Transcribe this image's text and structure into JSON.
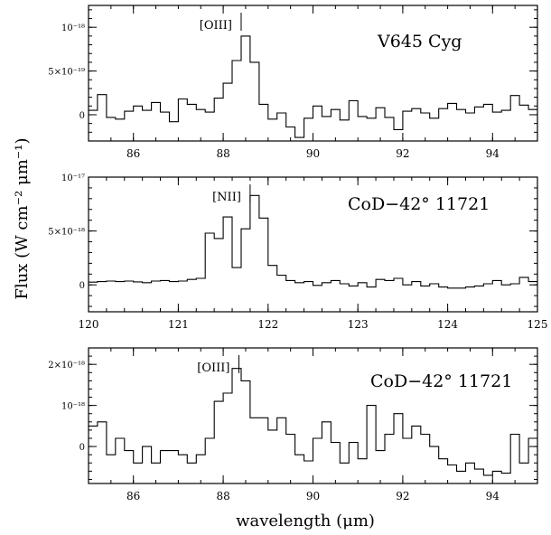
{
  "figure": {
    "ylabel": "Flux (W cm⁻² μm⁻¹)",
    "xlabel": "wavelength (μm)"
  },
  "chart_data": [
    {
      "type": "line",
      "style": "step",
      "panel_label": "V645 Cyg",
      "line_label": "[OIII]",
      "line_marker_x": 88.4,
      "xlim": [
        85,
        95
      ],
      "ylim": [
        -3e-19,
        1.25e-18
      ],
      "xticks": [
        86,
        88,
        90,
        92,
        94
      ],
      "yticks": [
        {
          "value": 0,
          "label": "0"
        },
        {
          "value": 5e-19,
          "label": "5×10⁻¹⁹"
        },
        {
          "value": 1e-18,
          "label": "10⁻¹⁸"
        }
      ],
      "x": [
        85.0,
        85.2,
        85.4,
        85.6,
        85.8,
        86.0,
        86.2,
        86.4,
        86.6,
        86.8,
        87.0,
        87.2,
        87.4,
        87.6,
        87.8,
        88.0,
        88.2,
        88.4,
        88.6,
        88.8,
        89.0,
        89.2,
        89.4,
        89.6,
        89.8,
        90.0,
        90.2,
        90.4,
        90.6,
        90.8,
        91.0,
        91.2,
        91.4,
        91.6,
        91.8,
        92.0,
        92.2,
        92.4,
        92.6,
        92.8,
        93.0,
        93.2,
        93.4,
        93.6,
        93.8,
        94.0,
        94.2,
        94.4,
        94.6,
        94.8,
        95.0
      ],
      "y": [
        5e-20,
        2.3e-19,
        -3e-20,
        -5e-20,
        4e-20,
        1e-19,
        5e-20,
        1.4e-19,
        3e-20,
        -8e-20,
        1.8e-19,
        1.2e-19,
        6e-20,
        3e-20,
        1.9e-19,
        3.6e-19,
        6.2e-19,
        9e-19,
        6e-19,
        1.2e-19,
        -5e-20,
        2e-20,
        -1.4e-19,
        -2.6e-19,
        -4e-20,
        1e-19,
        -2e-20,
        6e-20,
        -6e-20,
        1.6e-19,
        -2e-20,
        -4e-20,
        8e-20,
        -3e-20,
        -1.7e-19,
        4e-20,
        7e-20,
        2e-20,
        -4e-20,
        7e-20,
        1.3e-19,
        6e-20,
        2e-20,
        9e-20,
        1.2e-19,
        3e-20,
        5e-20,
        2.2e-19,
        1.1e-19,
        6e-20,
        6e-20
      ]
    },
    {
      "type": "line",
      "style": "step",
      "panel_label": "CoD−42° 11721",
      "line_label": "[NII]",
      "line_marker_x": 121.8,
      "xlim": [
        120,
        125
      ],
      "ylim": [
        -2.5e-18,
        1e-17
      ],
      "xticks": [
        120,
        121,
        122,
        123,
        124,
        125
      ],
      "yticks": [
        {
          "value": 0,
          "label": "0"
        },
        {
          "value": 5e-18,
          "label": "5×10⁻¹⁸"
        },
        {
          "value": 1e-17,
          "label": "10⁻¹⁷"
        }
      ],
      "x": [
        120.0,
        120.1,
        120.2,
        120.3,
        120.4,
        120.5,
        120.6,
        120.7,
        120.8,
        120.9,
        121.0,
        121.1,
        121.2,
        121.3,
        121.4,
        121.5,
        121.6,
        121.7,
        121.8,
        121.9,
        122.0,
        122.1,
        122.2,
        122.3,
        122.4,
        122.5,
        122.6,
        122.7,
        122.8,
        122.9,
        123.0,
        123.1,
        123.2,
        123.3,
        123.4,
        123.5,
        123.6,
        123.7,
        123.8,
        123.9,
        124.0,
        124.1,
        124.2,
        124.3,
        124.4,
        124.5,
        124.6,
        124.7,
        124.8,
        124.9,
        125.0
      ],
      "y": [
        2.5e-19,
        3e-19,
        3.5e-19,
        3e-19,
        3.5e-19,
        2.8e-19,
        2e-19,
        3.5e-19,
        4e-19,
        3e-19,
        3.5e-19,
        5e-19,
        6e-19,
        4.8e-18,
        4.3e-18,
        6.3e-18,
        1.6e-18,
        5.2e-18,
        8.3e-18,
        6.2e-18,
        1.8e-18,
        9e-19,
        4e-19,
        2e-19,
        3e-19,
        -5e-20,
        2e-19,
        4e-19,
        1e-19,
        -1e-19,
        2e-19,
        -2e-19,
        5e-19,
        4e-19,
        6e-19,
        0.0,
        3e-19,
        -1e-19,
        1e-19,
        -2e-19,
        -3e-19,
        -3e-19,
        -2e-19,
        -1e-19,
        1e-19,
        4e-19,
        0.0,
        1e-19,
        7e-19,
        3e-19,
        3e-19
      ]
    },
    {
      "type": "line",
      "style": "step",
      "panel_label": "CoD−42° 11721",
      "line_label": "[OIII]",
      "line_marker_x": 88.35,
      "xlim": [
        85,
        95
      ],
      "ylim": [
        -9e-19,
        2.4e-18
      ],
      "xticks": [
        86,
        88,
        90,
        92,
        94
      ],
      "yticks": [
        {
          "value": 0,
          "label": "0"
        },
        {
          "value": 1e-18,
          "label": "10⁻¹⁸"
        },
        {
          "value": 2e-18,
          "label": "2×10⁻¹⁸"
        }
      ],
      "x": [
        85.0,
        85.2,
        85.4,
        85.6,
        85.8,
        86.0,
        86.2,
        86.4,
        86.6,
        86.8,
        87.0,
        87.2,
        87.4,
        87.6,
        87.8,
        88.0,
        88.2,
        88.4,
        88.6,
        88.8,
        89.0,
        89.2,
        89.4,
        89.6,
        89.8,
        90.0,
        90.2,
        90.4,
        90.6,
        90.8,
        91.0,
        91.2,
        91.4,
        91.6,
        91.8,
        92.0,
        92.2,
        92.4,
        92.6,
        92.8,
        93.0,
        93.2,
        93.4,
        93.6,
        93.8,
        94.0,
        94.2,
        94.4,
        94.6,
        94.8,
        95.0
      ],
      "y": [
        5e-19,
        6e-19,
        -2e-19,
        2e-19,
        -1e-19,
        -4e-19,
        0.0,
        -4e-19,
        -1e-19,
        -1e-19,
        -2e-19,
        -4e-19,
        -2e-19,
        2e-19,
        1.1e-18,
        1.3e-18,
        1.9e-18,
        1.6e-18,
        7e-19,
        7e-19,
        4e-19,
        7e-19,
        3e-19,
        -2e-19,
        -3.5e-19,
        2e-19,
        6e-19,
        1e-19,
        -4e-19,
        1e-19,
        -3e-19,
        1e-18,
        -1e-19,
        3e-19,
        8e-19,
        2e-19,
        5e-19,
        3e-19,
        0.0,
        -3e-19,
        -4.5e-19,
        -6e-19,
        -4e-19,
        -5.5e-19,
        -7e-19,
        -6e-19,
        -6.5e-19,
        3e-19,
        -4e-19,
        2e-19,
        2.5e-19
      ]
    }
  ]
}
